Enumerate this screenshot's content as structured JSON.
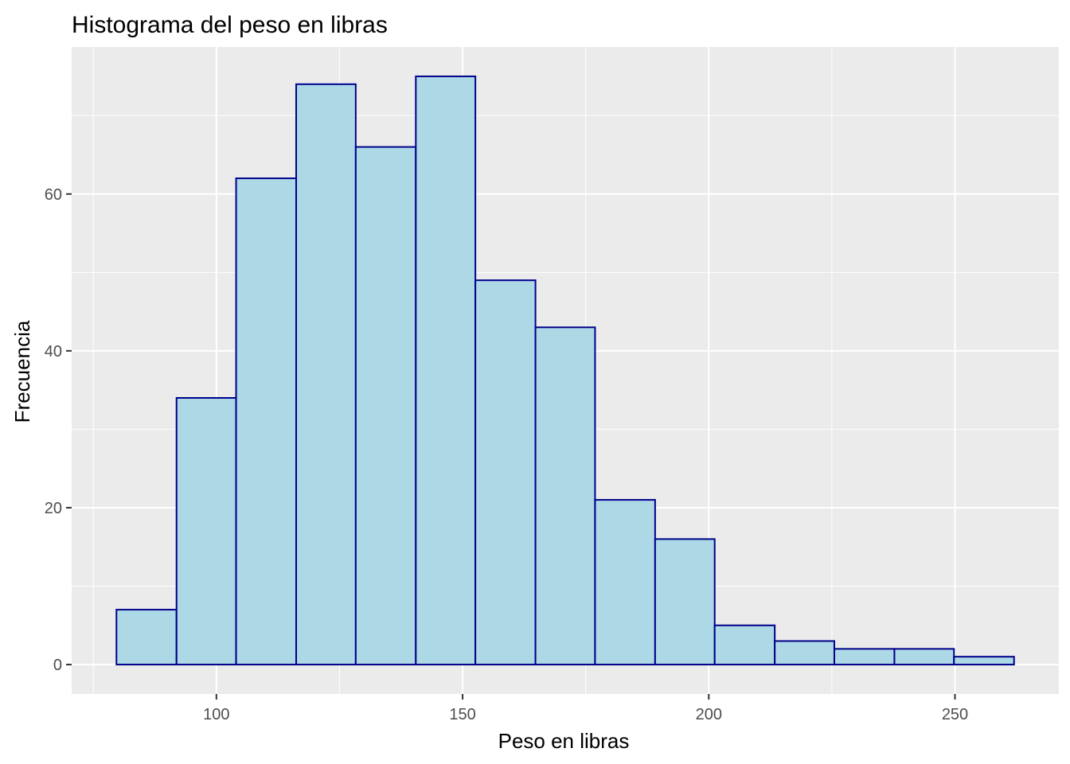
{
  "chart_data": {
    "type": "bar",
    "title": "Histograma del peso en libras",
    "xlabel": "Peso en libras",
    "ylabel": "Frecuencia",
    "bins": [
      {
        "x0": 79.7,
        "x1": 91.9,
        "count": 7
      },
      {
        "x0": 91.9,
        "x1": 104.0,
        "count": 34
      },
      {
        "x0": 104.0,
        "x1": 116.2,
        "count": 62
      },
      {
        "x0": 116.2,
        "x1": 128.3,
        "count": 74
      },
      {
        "x0": 128.3,
        "x1": 140.5,
        "count": 66
      },
      {
        "x0": 140.5,
        "x1": 152.6,
        "count": 75
      },
      {
        "x0": 152.6,
        "x1": 164.8,
        "count": 49
      },
      {
        "x0": 164.8,
        "x1": 176.9,
        "count": 43
      },
      {
        "x0": 176.9,
        "x1": 189.1,
        "count": 21
      },
      {
        "x0": 189.1,
        "x1": 201.2,
        "count": 16
      },
      {
        "x0": 201.2,
        "x1": 213.4,
        "count": 5
      },
      {
        "x0": 213.4,
        "x1": 225.5,
        "count": 3
      },
      {
        "x0": 225.5,
        "x1": 237.7,
        "count": 2
      },
      {
        "x0": 237.7,
        "x1": 249.8,
        "count": 2
      },
      {
        "x0": 249.8,
        "x1": 262.0,
        "count": 1
      }
    ],
    "x_ticks": [
      100,
      150,
      200,
      250
    ],
    "y_ticks": [
      0,
      20,
      40,
      60
    ],
    "xlim": [
      70.6,
      271.1
    ],
    "ylim": [
      -3.75,
      78.75
    ],
    "grid": true,
    "legend": "none",
    "colors": {
      "bar_fill": "#add8e6",
      "bar_outline": "#00008b",
      "panel_background": "#ebebeb",
      "grid_line": "#ffffff"
    }
  }
}
